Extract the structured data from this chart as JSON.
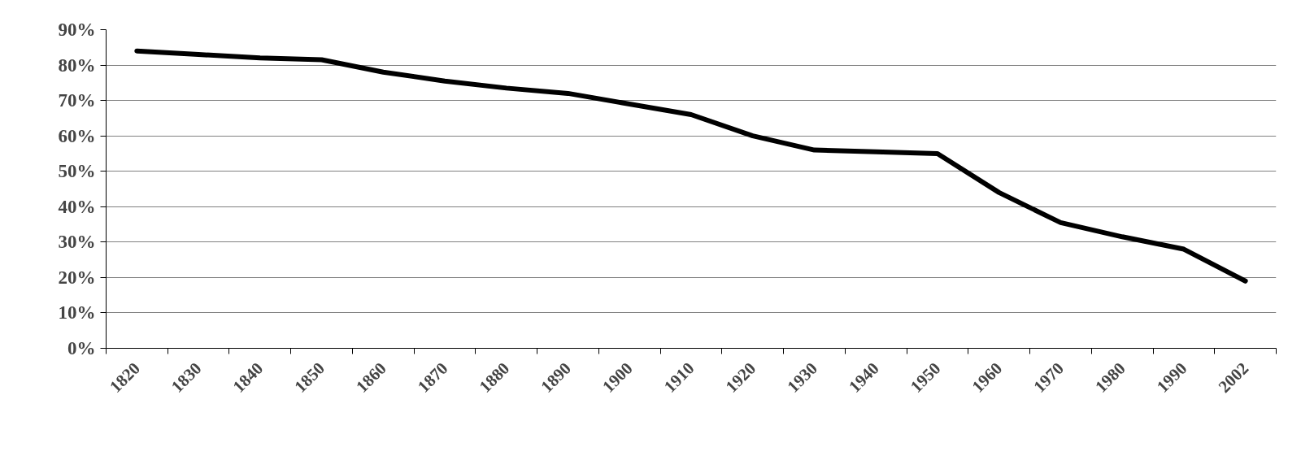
{
  "chart_data": {
    "type": "line",
    "categories": [
      "1820",
      "1830",
      "1840",
      "1850",
      "1860",
      "1870",
      "1880",
      "1890",
      "1900",
      "1910",
      "1920",
      "1930",
      "1940",
      "1950",
      "1960",
      "1970",
      "1980",
      "1990",
      "2002"
    ],
    "series": [
      {
        "color": "#000000",
        "values": [
          84,
          83,
          82,
          81.5,
          78,
          75.5,
          73.5,
          72,
          69,
          66,
          60,
          56,
          55.5,
          55,
          44,
          35.5,
          31.5,
          28,
          19
        ]
      }
    ],
    "ylim": [
      0,
      90
    ],
    "yticks": [
      {
        "value": 0,
        "label": "0%"
      },
      {
        "value": 10,
        "label": "10%"
      },
      {
        "value": 20,
        "label": "20%"
      },
      {
        "value": 30,
        "label": "30%"
      },
      {
        "value": 40,
        "label": "40%"
      },
      {
        "value": 50,
        "label": "50%"
      },
      {
        "value": 60,
        "label": "60%"
      },
      {
        "value": 70,
        "label": "70%"
      },
      {
        "value": 80,
        "label": "80%"
      },
      {
        "value": 90,
        "label": "90%"
      }
    ],
    "grid": "y",
    "line_style": "solid"
  }
}
